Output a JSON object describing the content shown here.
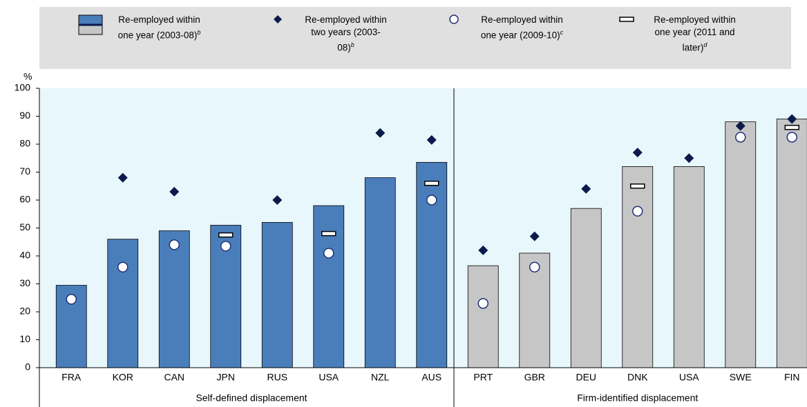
{
  "chart_data": {
    "type": "bar",
    "y_label": "%",
    "categories": [
      "FRA",
      "KOR",
      "CAN",
      "JPN",
      "RUS",
      "USA",
      "NZL",
      "AUS",
      "PRT",
      "GBR",
      "DEU",
      "DNK",
      "USA",
      "SWE",
      "FIN"
    ],
    "groups": [
      {
        "name": "Self-defined displacement",
        "start": 0,
        "end": 7,
        "color": "#4a7ebb"
      },
      {
        "name": "Firm-identified displacement",
        "start": 8,
        "end": 14,
        "color": "#c6c6c6"
      }
    ],
    "series": [
      {
        "name": "Re-employed within one year (2003-08)",
        "note": "b",
        "marker": "bar",
        "color": "#4a7ebb",
        "values": [
          29.5,
          46,
          49,
          51,
          52,
          58,
          68,
          73.5,
          36.5,
          41,
          57,
          72,
          72,
          88,
          89
        ]
      },
      {
        "name": "Re-employed within two years (2003-08)",
        "note": "b",
        "marker": "diamond",
        "color": "#0b1a4a",
        "values": [
          null,
          68,
          63,
          null,
          60,
          null,
          84,
          81.5,
          42,
          47,
          64,
          77,
          75,
          86.5,
          89
        ]
      },
      {
        "name": "Re-employed within one year (2009-10)",
        "note": "c",
        "marker": "circle",
        "color": "#1f2f7a",
        "values": [
          24.5,
          36,
          44,
          43.5,
          null,
          41,
          null,
          60,
          23,
          36,
          null,
          56,
          null,
          82.5,
          82.5
        ]
      },
      {
        "name": "Re-employed within one year (2011 and later)",
        "note": "d",
        "marker": "dash",
        "color": "#000000",
        "values": [
          null,
          null,
          null,
          47.5,
          null,
          48,
          null,
          66,
          null,
          null,
          null,
          65,
          null,
          null,
          86
        ]
      }
    ],
    "ylim": [
      0,
      100
    ],
    "yticks": [
      0,
      10,
      20,
      30,
      40,
      50,
      60,
      70,
      80,
      90,
      100
    ],
    "grid": false
  }
}
